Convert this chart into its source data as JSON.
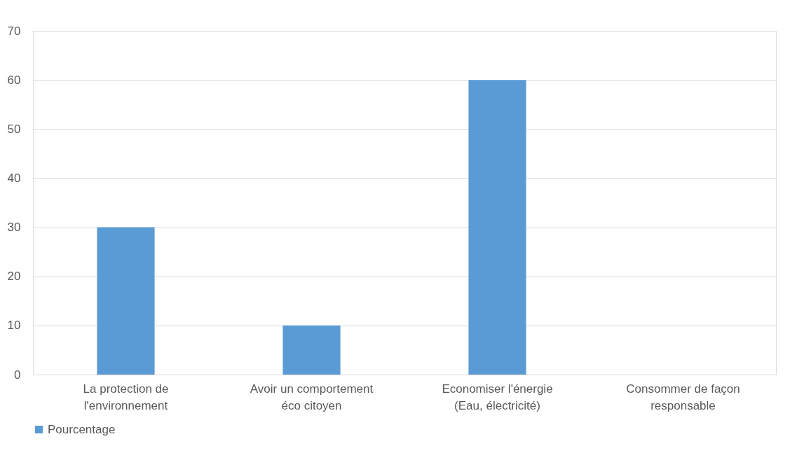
{
  "chart_data": {
    "type": "bar",
    "categories": [
      "La protection de l'environnement",
      "Avoir un comportement éco citoyen",
      "Economiser l'énergie (Eau, électricité)",
      "Consommer de façon responsable"
    ],
    "series": [
      {
        "name": "Pourcentage",
        "color": "#5b9bd5",
        "values": [
          30,
          10,
          60,
          0
        ]
      }
    ],
    "ylim": [
      0,
      70
    ],
    "yticks": [
      0,
      10,
      20,
      30,
      40,
      50,
      60,
      70
    ],
    "grid": "y",
    "legend": "bottom"
  }
}
